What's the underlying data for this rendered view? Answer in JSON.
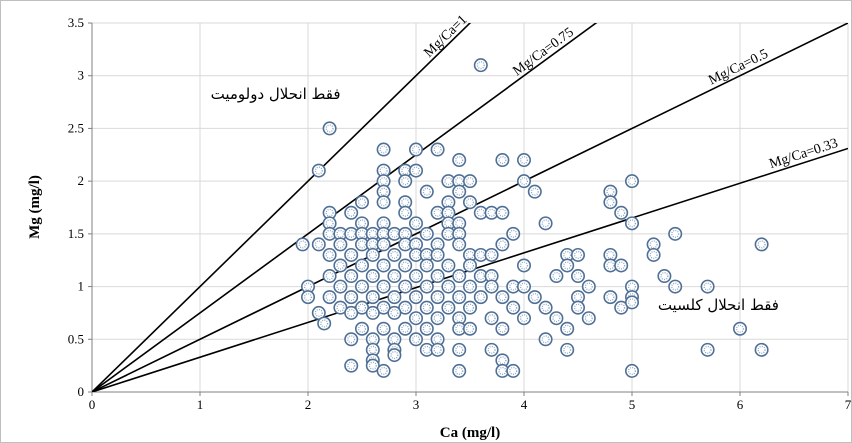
{
  "chart_data": {
    "type": "scatter",
    "xlabel": "Ca (mg/l)",
    "ylabel": "Mg (mg/l)",
    "xlim": [
      0,
      7
    ],
    "ylim": [
      0,
      3.5
    ],
    "x_ticks": [
      0,
      1,
      2,
      3,
      4,
      5,
      6,
      7
    ],
    "y_ticks": [
      0,
      0.5,
      1,
      1.5,
      2,
      2.5,
      3,
      3.5
    ],
    "x_tick_labels": [
      "0",
      "1",
      "2",
      "3",
      "4",
      "5",
      "6",
      "7"
    ],
    "y_tick_labels": [
      "0",
      "0.5",
      "1",
      "1.5",
      "2",
      "2.5",
      "3",
      "3.5"
    ],
    "grid": "both",
    "reference_lines": [
      {
        "label": "Mg/Ca=1",
        "slope": 1
      },
      {
        "label": "Mg/Ca=0.75",
        "slope": 0.75
      },
      {
        "label": "Mg/Ca=0.5",
        "slope": 0.5
      },
      {
        "label": "Mg/Ca=0.33",
        "slope": 0.33
      }
    ],
    "annotations": [
      {
        "text": "فقط انحلال دولومیت",
        "x": 1.7,
        "y": 2.78
      },
      {
        "text": "فقط انحلال کلسیت",
        "x": 5.8,
        "y": 0.78
      }
    ],
    "marker": {
      "fill": "#ffffff",
      "stroke": "#4f6f95",
      "dot": "#8ea7c3"
    },
    "points": [
      [
        3.6,
        3.1
      ],
      [
        2.2,
        2.5
      ],
      [
        2.1,
        2.1
      ],
      [
        2.7,
        2.3
      ],
      [
        3.0,
        2.3
      ],
      [
        3.2,
        2.3
      ],
      [
        2.7,
        2.1
      ],
      [
        2.9,
        2.1
      ],
      [
        3.0,
        2.1
      ],
      [
        3.4,
        2.2
      ],
      [
        3.8,
        2.2
      ],
      [
        4.0,
        2.2
      ],
      [
        2.7,
        2.0
      ],
      [
        2.9,
        2.0
      ],
      [
        3.3,
        2.0
      ],
      [
        3.4,
        2.0
      ],
      [
        3.5,
        2.0
      ],
      [
        4.0,
        2.0
      ],
      [
        4.8,
        1.9
      ],
      [
        5.0,
        2.0
      ],
      [
        2.7,
        1.9
      ],
      [
        3.1,
        1.9
      ],
      [
        3.4,
        1.9
      ],
      [
        4.1,
        1.9
      ],
      [
        2.5,
        1.8
      ],
      [
        2.7,
        1.8
      ],
      [
        2.9,
        1.8
      ],
      [
        3.3,
        1.8
      ],
      [
        3.5,
        1.8
      ],
      [
        4.8,
        1.8
      ],
      [
        2.2,
        1.7
      ],
      [
        2.4,
        1.7
      ],
      [
        2.9,
        1.7
      ],
      [
        3.2,
        1.7
      ],
      [
        3.3,
        1.7
      ],
      [
        3.6,
        1.7
      ],
      [
        3.7,
        1.7
      ],
      [
        3.8,
        1.7
      ],
      [
        4.9,
        1.7
      ],
      [
        2.2,
        1.6
      ],
      [
        2.5,
        1.6
      ],
      [
        2.7,
        1.6
      ],
      [
        3.0,
        1.6
      ],
      [
        3.3,
        1.6
      ],
      [
        3.4,
        1.6
      ],
      [
        4.2,
        1.6
      ],
      [
        5.0,
        1.6
      ],
      [
        2.2,
        1.5
      ],
      [
        2.3,
        1.5
      ],
      [
        2.4,
        1.5
      ],
      [
        2.5,
        1.5
      ],
      [
        2.6,
        1.5
      ],
      [
        2.7,
        1.5
      ],
      [
        2.8,
        1.5
      ],
      [
        2.9,
        1.5
      ],
      [
        3.1,
        1.5
      ],
      [
        3.3,
        1.5
      ],
      [
        3.4,
        1.5
      ],
      [
        3.9,
        1.5
      ],
      [
        5.4,
        1.5
      ],
      [
        1.95,
        1.4
      ],
      [
        2.1,
        1.4
      ],
      [
        2.3,
        1.4
      ],
      [
        2.5,
        1.4
      ],
      [
        2.6,
        1.4
      ],
      [
        2.7,
        1.4
      ],
      [
        2.9,
        1.4
      ],
      [
        3.0,
        1.4
      ],
      [
        3.2,
        1.4
      ],
      [
        3.4,
        1.4
      ],
      [
        3.8,
        1.4
      ],
      [
        5.2,
        1.4
      ],
      [
        6.2,
        1.4
      ],
      [
        2.2,
        1.3
      ],
      [
        2.4,
        1.3
      ],
      [
        2.6,
        1.3
      ],
      [
        2.8,
        1.3
      ],
      [
        3.0,
        1.3
      ],
      [
        3.1,
        1.3
      ],
      [
        3.2,
        1.3
      ],
      [
        3.5,
        1.3
      ],
      [
        3.6,
        1.3
      ],
      [
        3.7,
        1.3
      ],
      [
        4.4,
        1.3
      ],
      [
        4.5,
        1.3
      ],
      [
        4.8,
        1.3
      ],
      [
        5.2,
        1.3
      ],
      [
        2.3,
        1.2
      ],
      [
        2.5,
        1.2
      ],
      [
        2.7,
        1.2
      ],
      [
        2.9,
        1.2
      ],
      [
        3.1,
        1.2
      ],
      [
        3.3,
        1.2
      ],
      [
        3.5,
        1.2
      ],
      [
        4.0,
        1.2
      ],
      [
        4.4,
        1.2
      ],
      [
        4.8,
        1.2
      ],
      [
        4.9,
        1.2
      ],
      [
        2.2,
        1.1
      ],
      [
        2.4,
        1.1
      ],
      [
        2.6,
        1.1
      ],
      [
        2.8,
        1.1
      ],
      [
        3.0,
        1.1
      ],
      [
        3.2,
        1.1
      ],
      [
        3.4,
        1.1
      ],
      [
        3.6,
        1.1
      ],
      [
        3.7,
        1.1
      ],
      [
        4.3,
        1.1
      ],
      [
        4.5,
        1.1
      ],
      [
        5.3,
        1.1
      ],
      [
        2.0,
        1.0
      ],
      [
        2.3,
        1.0
      ],
      [
        2.5,
        1.0
      ],
      [
        2.7,
        1.0
      ],
      [
        2.9,
        1.0
      ],
      [
        3.1,
        1.0
      ],
      [
        3.3,
        1.0
      ],
      [
        3.5,
        1.0
      ],
      [
        3.7,
        1.0
      ],
      [
        3.9,
        1.0
      ],
      [
        4.0,
        1.0
      ],
      [
        4.6,
        1.0
      ],
      [
        5.0,
        1.0
      ],
      [
        5.4,
        1.0
      ],
      [
        5.7,
        1.0
      ],
      [
        2.0,
        0.9
      ],
      [
        2.2,
        0.9
      ],
      [
        2.4,
        0.9
      ],
      [
        2.6,
        0.9
      ],
      [
        2.8,
        0.9
      ],
      [
        3.0,
        0.9
      ],
      [
        3.2,
        0.9
      ],
      [
        3.4,
        0.9
      ],
      [
        3.6,
        0.9
      ],
      [
        3.8,
        0.9
      ],
      [
        4.1,
        0.9
      ],
      [
        4.5,
        0.9
      ],
      [
        4.8,
        0.9
      ],
      [
        5.0,
        0.9
      ],
      [
        2.3,
        0.8
      ],
      [
        2.5,
        0.8
      ],
      [
        2.7,
        0.8
      ],
      [
        2.9,
        0.8
      ],
      [
        3.1,
        0.8
      ],
      [
        3.3,
        0.8
      ],
      [
        3.5,
        0.8
      ],
      [
        3.9,
        0.8
      ],
      [
        4.2,
        0.8
      ],
      [
        4.5,
        0.8
      ],
      [
        4.9,
        0.8
      ],
      [
        5.0,
        0.85
      ],
      [
        2.1,
        0.75
      ],
      [
        2.4,
        0.75
      ],
      [
        2.6,
        0.75
      ],
      [
        2.8,
        0.75
      ],
      [
        3.0,
        0.7
      ],
      [
        3.2,
        0.7
      ],
      [
        3.4,
        0.7
      ],
      [
        3.7,
        0.7
      ],
      [
        4.0,
        0.7
      ],
      [
        4.3,
        0.7
      ],
      [
        4.6,
        0.7
      ],
      [
        2.15,
        0.65
      ],
      [
        2.5,
        0.6
      ],
      [
        2.7,
        0.6
      ],
      [
        2.9,
        0.6
      ],
      [
        3.1,
        0.6
      ],
      [
        3.4,
        0.6
      ],
      [
        3.5,
        0.6
      ],
      [
        3.8,
        0.6
      ],
      [
        4.4,
        0.6
      ],
      [
        6.0,
        0.6
      ],
      [
        2.4,
        0.5
      ],
      [
        2.6,
        0.5
      ],
      [
        2.8,
        0.5
      ],
      [
        3.0,
        0.5
      ],
      [
        3.2,
        0.5
      ],
      [
        4.2,
        0.5
      ],
      [
        2.6,
        0.4
      ],
      [
        2.8,
        0.4
      ],
      [
        3.1,
        0.4
      ],
      [
        3.2,
        0.4
      ],
      [
        3.4,
        0.4
      ],
      [
        3.7,
        0.4
      ],
      [
        4.4,
        0.4
      ],
      [
        5.7,
        0.4
      ],
      [
        6.2,
        0.4
      ],
      [
        2.6,
        0.3
      ],
      [
        2.8,
        0.35
      ],
      [
        3.8,
        0.3
      ],
      [
        2.4,
        0.25
      ],
      [
        2.6,
        0.25
      ],
      [
        2.7,
        0.2
      ],
      [
        3.4,
        0.2
      ],
      [
        3.8,
        0.2
      ],
      [
        3.9,
        0.2
      ],
      [
        5.0,
        0.2
      ]
    ]
  }
}
